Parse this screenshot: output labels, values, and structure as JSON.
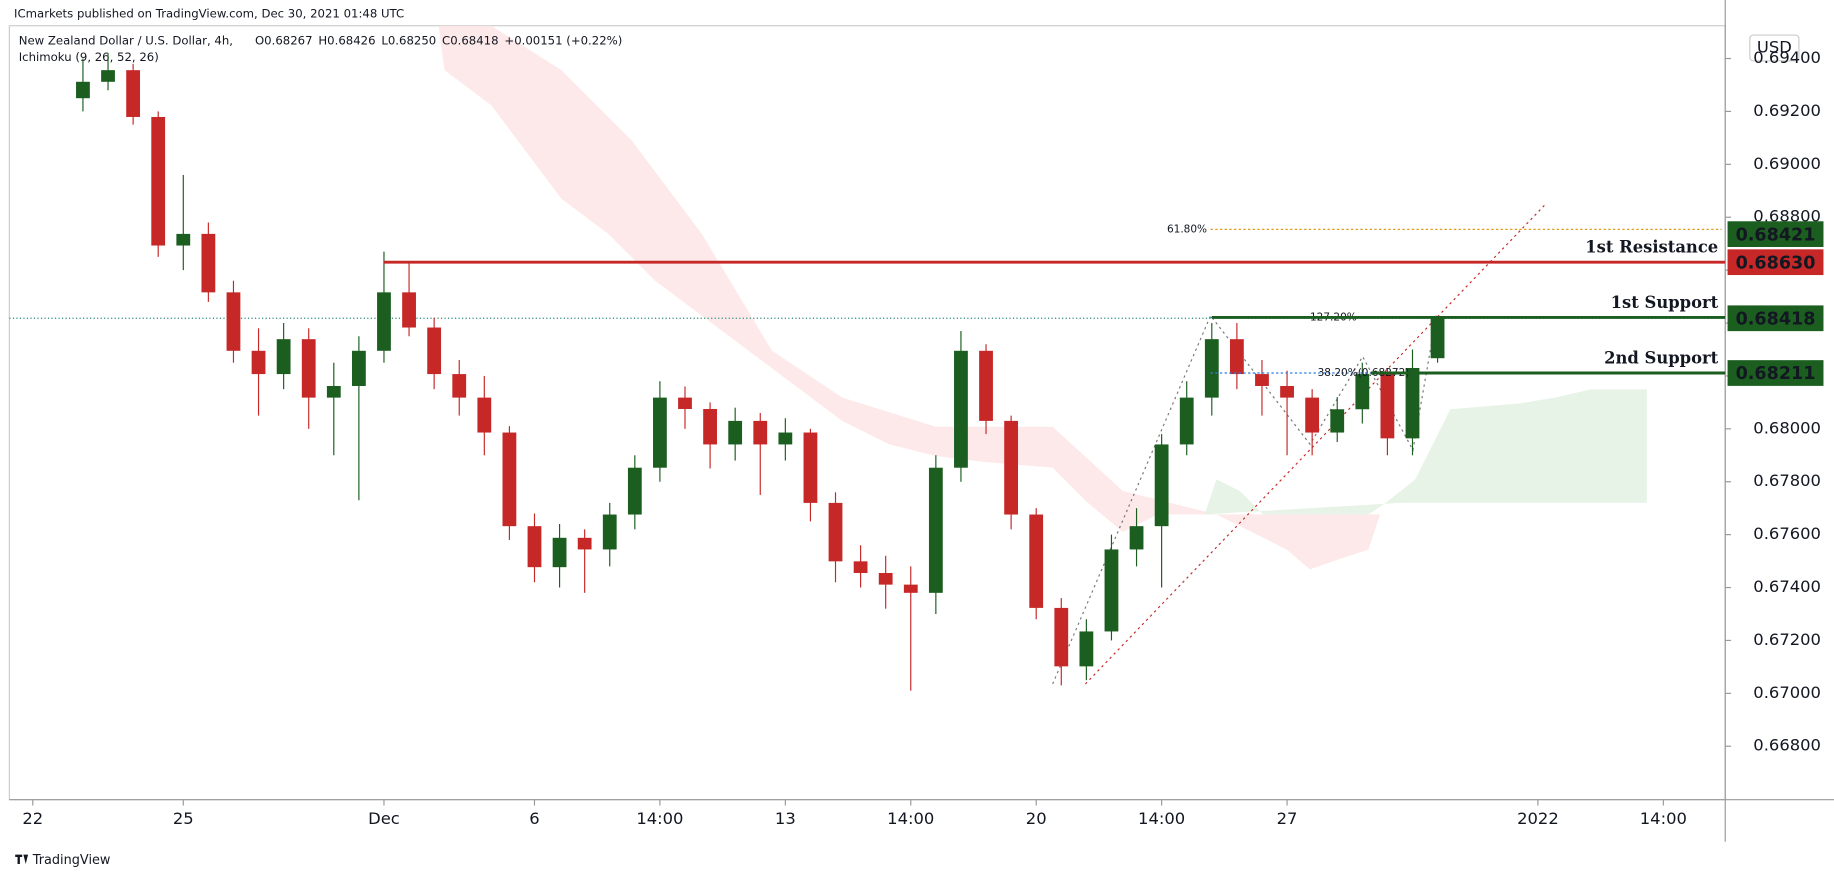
{
  "chart_data": {
    "type": "candlestick",
    "publisher": "ICmarkets published on TradingView.com, Dec 30, 2021 01:48 UTC",
    "symbol": "New Zealand Dollar / U.S. Dollar, 4h,",
    "indicator": "Ichimoku (9, 26, 52, 26)",
    "header_ohlc": [
      "O0.68267",
      "H0.68426",
      "L0.68250",
      "C0.68418",
      "+0.00151 (+0.22%)"
    ],
    "currency": "USD",
    "footer": "TradingView",
    "x": [
      6,
      9,
      12,
      15,
      18,
      21,
      24,
      27,
      30,
      33,
      36,
      39,
      42,
      45,
      48,
      51,
      54,
      57,
      60,
      63,
      66,
      69,
      72,
      75,
      78,
      81,
      84,
      87,
      90,
      93,
      96,
      99,
      102,
      105,
      108,
      111,
      114,
      117,
      120,
      123,
      126,
      129,
      132,
      135,
      138,
      141,
      144,
      147,
      150,
      153,
      156,
      159,
      162,
      165,
      168
    ],
    "ohlc": [
      [
        0.6925,
        0.694,
        0.692,
        0.69312
      ],
      [
        0.69312,
        0.6942,
        0.6928,
        0.69356
      ],
      [
        0.69356,
        0.6938,
        0.6915,
        0.69179
      ],
      [
        0.69179,
        0.692,
        0.6865,
        0.68693
      ],
      [
        0.68693,
        0.6896,
        0.686,
        0.68737
      ],
      [
        0.68737,
        0.6878,
        0.6848,
        0.68516
      ],
      [
        0.68516,
        0.6856,
        0.6825,
        0.68295
      ],
      [
        0.68295,
        0.6838,
        0.6805,
        0.68207
      ],
      [
        0.68207,
        0.684,
        0.6815,
        0.68339
      ],
      [
        0.68339,
        0.6838,
        0.68,
        0.68118
      ],
      [
        0.68118,
        0.6825,
        0.679,
        0.68162
      ],
      [
        0.68162,
        0.6835,
        0.6773,
        0.68295
      ],
      [
        0.68295,
        0.6867,
        0.6825,
        0.68516
      ],
      [
        0.68516,
        0.6863,
        0.6835,
        0.68383
      ],
      [
        0.68383,
        0.6842,
        0.6815,
        0.68207
      ],
      [
        0.68207,
        0.6826,
        0.6805,
        0.68118
      ],
      [
        0.68118,
        0.682,
        0.679,
        0.67986
      ],
      [
        0.67986,
        0.6801,
        0.6758,
        0.67632
      ],
      [
        0.67632,
        0.6768,
        0.6742,
        0.67477
      ],
      [
        0.67477,
        0.6764,
        0.674,
        0.67588
      ],
      [
        0.67588,
        0.6762,
        0.6738,
        0.67544
      ],
      [
        0.67544,
        0.6772,
        0.6748,
        0.67676
      ],
      [
        0.67676,
        0.679,
        0.6762,
        0.67853
      ],
      [
        0.67853,
        0.6818,
        0.678,
        0.68118
      ],
      [
        0.68118,
        0.6816,
        0.68,
        0.68075
      ],
      [
        0.68075,
        0.681,
        0.6785,
        0.67941
      ],
      [
        0.67941,
        0.6808,
        0.6788,
        0.6803
      ],
      [
        0.6803,
        0.6806,
        0.6775,
        0.67941
      ],
      [
        0.67941,
        0.6804,
        0.6788,
        0.67986
      ],
      [
        0.67986,
        0.68,
        0.6765,
        0.6772
      ],
      [
        0.6772,
        0.6776,
        0.6742,
        0.67499
      ],
      [
        0.67499,
        0.6756,
        0.674,
        0.67455
      ],
      [
        0.67455,
        0.6752,
        0.6732,
        0.67411
      ],
      [
        0.67411,
        0.6748,
        0.6701,
        0.6738
      ],
      [
        0.6738,
        0.679,
        0.673,
        0.67853
      ],
      [
        0.67853,
        0.6837,
        0.678,
        0.68295
      ],
      [
        0.68295,
        0.6832,
        0.6798,
        0.6803
      ],
      [
        0.6803,
        0.6805,
        0.6762,
        0.67676
      ],
      [
        0.67676,
        0.677,
        0.6728,
        0.67323
      ],
      [
        0.67323,
        0.6736,
        0.6703,
        0.67102
      ],
      [
        0.67102,
        0.6728,
        0.6705,
        0.67234
      ],
      [
        0.67234,
        0.676,
        0.672,
        0.67544
      ],
      [
        0.67544,
        0.677,
        0.6748,
        0.67632
      ],
      [
        0.67632,
        0.6798,
        0.674,
        0.67941
      ],
      [
        0.67941,
        0.6818,
        0.679,
        0.68118
      ],
      [
        0.68118,
        0.684,
        0.6805,
        0.68339
      ],
      [
        0.68339,
        0.684,
        0.6815,
        0.68207
      ],
      [
        0.68207,
        0.6826,
        0.6805,
        0.68162
      ],
      [
        0.68162,
        0.6822,
        0.679,
        0.68118
      ],
      [
        0.68118,
        0.6815,
        0.679,
        0.67986
      ],
      [
        0.67986,
        0.6812,
        0.6795,
        0.68074
      ],
      [
        0.68074,
        0.6825,
        0.6802,
        0.68207
      ],
      [
        0.68207,
        0.6823,
        0.679,
        0.67964
      ],
      [
        0.67964,
        0.683,
        0.679,
        0.6823
      ],
      [
        0.68267,
        0.68426,
        0.6825,
        0.68418
      ]
    ],
    "up_color": "#1b5e20",
    "down_color": "#c62828",
    "xlim": [
      -2.8,
      202.4
    ],
    "xticks": [
      {
        "value": 0,
        "label": "22"
      },
      {
        "value": 18,
        "label": "25"
      },
      {
        "value": 42,
        "label": "Dec"
      },
      {
        "value": 60,
        "label": "6"
      },
      {
        "value": 75,
        "label": "14:00"
      },
      {
        "value": 90,
        "label": "13"
      },
      {
        "value": 105,
        "label": "14:00"
      },
      {
        "value": 120,
        "label": "20"
      },
      {
        "value": 135,
        "label": "14:00"
      },
      {
        "value": 150,
        "label": "27"
      },
      {
        "value": 180,
        "label": "2022"
      },
      {
        "value": 195,
        "label": "14:00"
      }
    ],
    "ylim": [
      0.66598,
      0.69524
    ],
    "yticks": [
      {
        "value": 0.668,
        "label": "0.66800"
      },
      {
        "value": 0.67,
        "label": "0.67000"
      },
      {
        "value": 0.672,
        "label": "0.67200"
      },
      {
        "value": 0.674,
        "label": "0.67400"
      },
      {
        "value": 0.676,
        "label": "0.67600"
      },
      {
        "value": 0.678,
        "label": "0.67800"
      },
      {
        "value": 0.68,
        "label": "0.68000"
      },
      {
        "value": 0.682,
        "label": "0.68200"
      },
      {
        "value": 0.684,
        "label": "0.68400"
      },
      {
        "value": 0.686,
        "label": "0.68600"
      },
      {
        "value": 0.688,
        "label": "0.68800"
      },
      {
        "value": 0.69,
        "label": "0.69000"
      },
      {
        "value": 0.692,
        "label": "0.69200"
      },
      {
        "value": 0.694,
        "label": "0.69400"
      }
    ],
    "levels": [
      {
        "name": "1st Resistance",
        "value": 0.6863,
        "value_label": "0.68630",
        "color": "#c62828",
        "start": 42
      },
      {
        "name": "1st Support",
        "value": 0.68421,
        "value_label": "0.68421",
        "color": "#1b5e20",
        "start": 141
      },
      {
        "name": "2nd Support",
        "value": 0.68211,
        "value_label": "0.68211",
        "color": "#1b5e20",
        "start": 160
      }
    ],
    "last_price": {
      "value": 0.68418,
      "label": "0.68418",
      "color": "#1b5e20"
    },
    "fib_labels": [
      {
        "value": 0.68754,
        "label": "61.80%",
        "color": "#e09b1a"
      },
      {
        "value": 0.68421,
        "label": "127.20%",
        "color": "#2a7de1"
      },
      {
        "value": 0.68211,
        "label": "38.20%(0.68272)",
        "color": "#2a7de1"
      }
    ]
  }
}
